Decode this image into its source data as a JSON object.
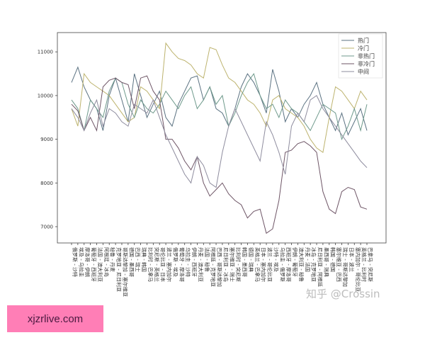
{
  "chart_data": {
    "type": "line",
    "title": "",
    "xlabel": "",
    "ylabel": "",
    "ylim": [
      6600,
      11450
    ],
    "yticks": [
      7000,
      8000,
      9000,
      10000,
      11000
    ],
    "grid": false,
    "legend_position": "top-right",
    "categories": [
      "俄罗斯 - 沙特",
      "埃及 - 乌拉圭",
      "摩洛哥 - 伊朗",
      "葡萄牙 - 西班牙",
      "法国 - 澳大利亚",
      "阿根廷 - 冰岛",
      "秘鲁 - 丹麦",
      "克罗地亚 - 尼日利亚",
      "哥斯达黎加 - 塞尔维亚",
      "德国 - 墨西哥",
      "巴西 - 瑞士",
      "瑞典 - 韩国",
      "比利时 - 巴拿马",
      "突尼斯 - 英格兰",
      "哥伦比亚 - 日本",
      "波兰 - 塞内加尔",
      "俄罗斯 - 埃及",
      "葡萄牙 - 摩洛哥",
      "乌拉圭 - 沙特",
      "伊朗 - 西班牙",
      "丹麦 - 澳大利亚",
      "法国 - 秘鲁",
      "阿根廷 - 克罗地亚",
      "巴西 - 哥斯达黎加",
      "尼日利亚 - 冰岛",
      "塞尔维亚 - 瑞士",
      "比利时 - 突尼斯",
      "韩国 - 墨西哥",
      "德国 - 瑞典",
      "英格兰 - 巴拿马",
      "日本 - 塞内加尔",
      "波兰 - 哥伦比亚",
      "沙特 - 埃及",
      "乌拉圭 - 俄罗斯",
      "西班牙 - 摩洛哥",
      "伊朗 - 葡萄牙",
      "澳大利亚 - 秘鲁",
      "丹麦 - 法国",
      "冰岛 - 克罗地亚",
      "尼日利亚 - 阿根廷",
      "墨西哥 - 瑞典",
      "韩国 - 德国",
      "塞尔维亚 - 巴西",
      "瑞士 - 哥斯达黎加",
      "日本 - 波兰",
      "塞内加尔 - 哥伦比亚",
      "英格兰 - 比利时",
      "巴拿马 - 突尼斯"
    ],
    "series": [
      {
        "name": "热门",
        "color": "#5b7282",
        "values": [
          10300,
          10650,
          10200,
          9900,
          9700,
          9200,
          10000,
          10400,
          9900,
          9400,
          10500,
          10000,
          9500,
          9800,
          10100,
          9500,
          9300,
          9800,
          10100,
          10400,
          10450,
          9900,
          10200,
          9700,
          9600,
          9300,
          9700,
          10200,
          10500,
          10300,
          10000,
          9600,
          10600,
          10100,
          9400,
          9700,
          9500,
          9800,
          10000,
          10300,
          9800,
          9500,
          9200,
          9600,
          9100,
          9400,
          9700,
          9200
        ]
      },
      {
        "name": "冷门",
        "color": "#bdb36e",
        "values": [
          9700,
          9300,
          10500,
          10300,
          10200,
          10100,
          10000,
          9800,
          9600,
          9400,
          9500,
          10200,
          10100,
          9900,
          9700,
          11200,
          11000,
          10850,
          10800,
          10700,
          10500,
          10400,
          11100,
          11050,
          10700,
          10400,
          10300,
          10100,
          9900,
          9800,
          9600,
          9300,
          9900,
          10000,
          9700,
          9600,
          9500,
          9300,
          9000,
          8800,
          8700,
          9500,
          10200,
          10100,
          9900,
          9700,
          10100,
          9900
        ]
      },
      {
        "name": "非热门",
        "color": "#6f9a8c",
        "values": [
          9900,
          9700,
          9200,
          9900,
          9700,
          9500,
          10100,
          10400,
          10300,
          9800,
          9500,
          9900,
          9700,
          9600,
          9800,
          10100,
          9900,
          9700,
          10000,
          10200,
          9700,
          9900,
          10200,
          9800,
          10000,
          9300,
          9600,
          10000,
          10300,
          10500,
          10000,
          9700,
          9800,
          9500,
          9900,
          9700,
          9600,
          9400,
          9200,
          9500,
          9800,
          9700,
          9600,
          9000,
          9300,
          9700,
          9200,
          9800
        ]
      },
      {
        "name": "非冷门",
        "color": "#6e5566",
        "values": [
          9800,
          9650,
          9200,
          9500,
          9200,
          10200,
          10350,
          10400,
          10300,
          10250,
          9700,
          10400,
          10450,
          10100,
          9900,
          9000,
          9000,
          8800,
          8500,
          8300,
          8600,
          8000,
          7700,
          7850,
          8000,
          7750,
          7600,
          7500,
          7200,
          7350,
          7400,
          6850,
          6950,
          7600,
          8700,
          8750,
          8900,
          8950,
          8850,
          8700,
          7800,
          7400,
          7300,
          7800,
          7900,
          7850,
          7450,
          7400
        ]
      },
      {
        "name": "中间",
        "color": "#8e8c9e",
        "values": [
          9700,
          9500,
          9200,
          9600,
          9900,
          9300,
          9700,
          9600,
          9400,
          9300,
          9800,
          9700,
          9600,
          9900,
          9500,
          9100,
          8800,
          8500,
          8200,
          8000,
          8600,
          8400,
          8000,
          7900,
          8700,
          9300,
          9700,
          9400,
          9100,
          8800,
          8500,
          9400,
          9100,
          8700,
          8200,
          9300,
          9600,
          9400,
          9900,
          10000,
          9700,
          9500,
          9300,
          9100,
          8900,
          8700,
          8500,
          8350
        ]
      }
    ]
  },
  "watermark": "知乎 @Crossin",
  "banner": {
    "text": "xjzrlive.com",
    "color": "#ff7eb6"
  }
}
